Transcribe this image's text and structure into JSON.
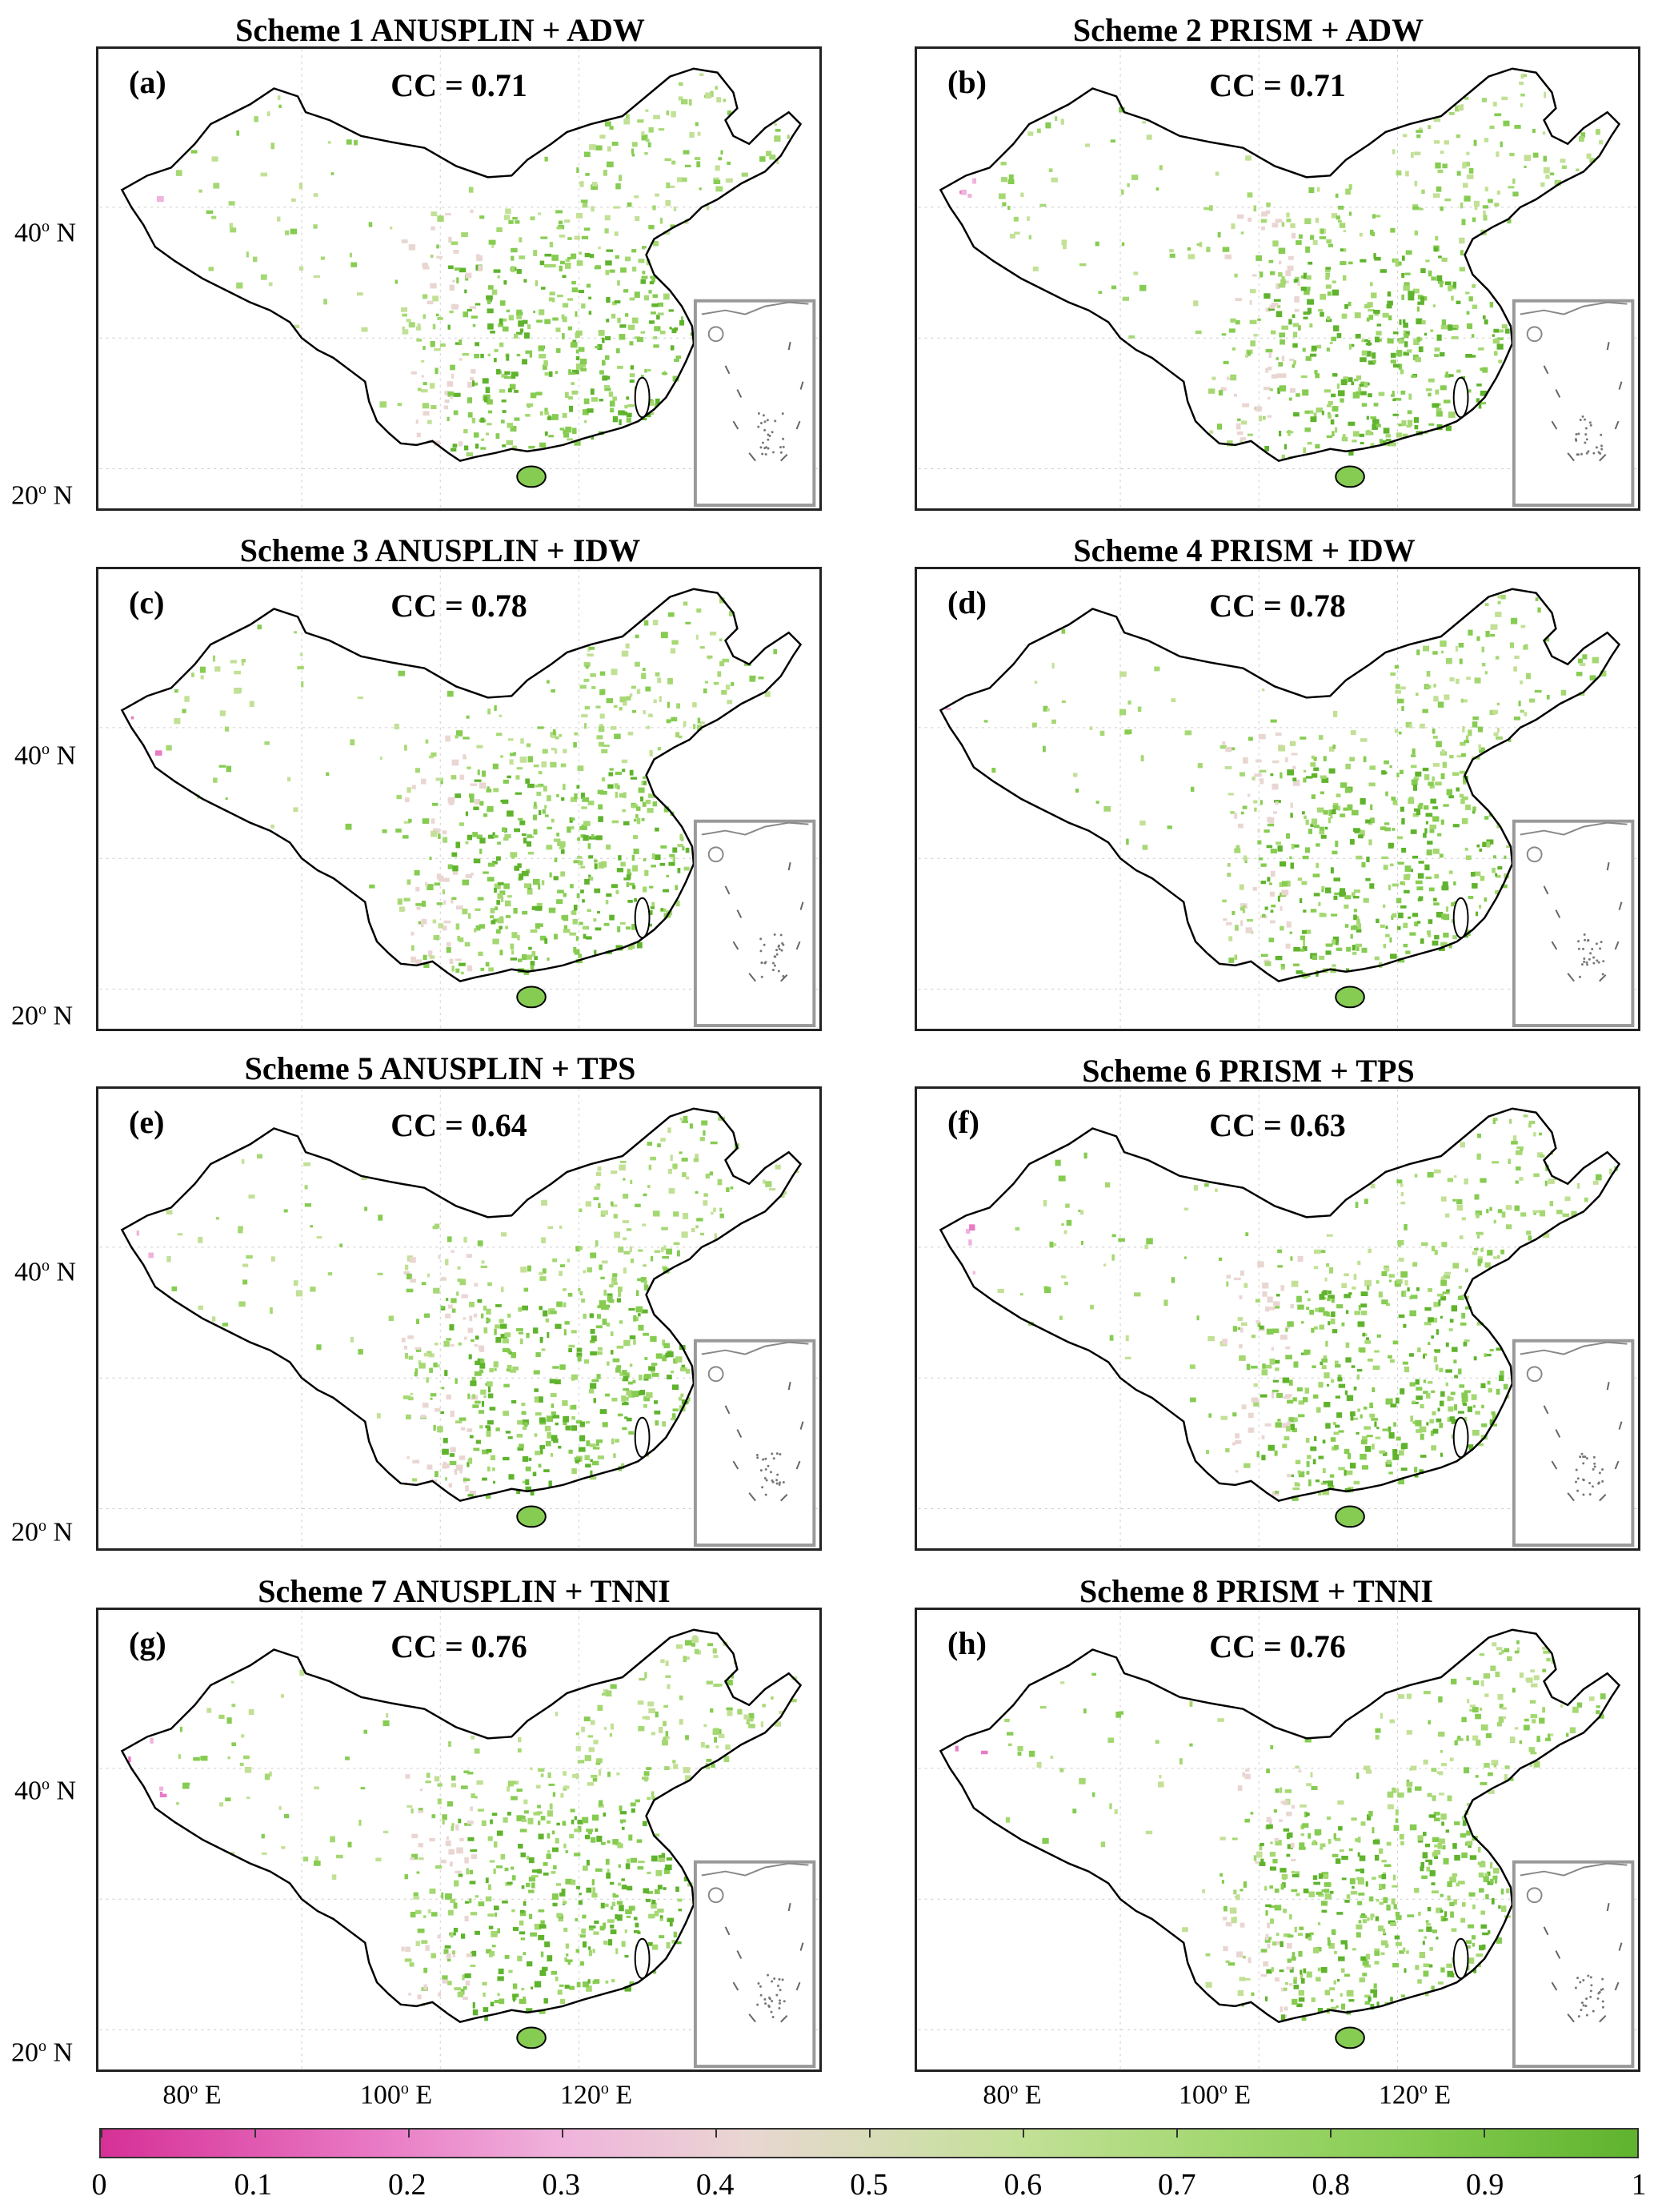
{
  "panels": [
    {
      "title": "Scheme 1   ANUSPLIN + ADW",
      "label": "(a)",
      "cc": "CC = 0.71"
    },
    {
      "title": "Scheme 2   PRISM + ADW",
      "label": "(b)",
      "cc": "CC = 0.71"
    },
    {
      "title": "Scheme 3   ANUSPLIN + IDW",
      "label": "(c)",
      "cc": "CC = 0.78"
    },
    {
      "title": "Scheme 4   PRISM + IDW",
      "label": "(d)",
      "cc": "CC = 0.78"
    },
    {
      "title": "Scheme 5   ANUSPLIN + TPS",
      "label": "(e)",
      "cc": "CC = 0.64"
    },
    {
      "title": "Scheme 6   PRISM + TPS",
      "label": "(f)",
      "cc": "CC = 0.63"
    },
    {
      "title": "Scheme 7  ANUSPLIN + TNNI",
      "label": "(g)",
      "cc": "CC = 0.76"
    },
    {
      "title": "Scheme 8   PRISM + TNNI",
      "label": "(h)",
      "cc": "CC = 0.76"
    }
  ],
  "lat_labels": {
    "north40": "40",
    "north20": "20",
    "suffix": " N"
  },
  "lon_labels": {
    "e80": "80",
    "e100": "100",
    "e120": "120",
    "suffix": " E"
  },
  "colorbar": {
    "ticks": [
      "0",
      "0.1",
      "0.2",
      "0.3",
      "0.4",
      "0.5",
      "0.6",
      "0.7",
      "0.8",
      "0.9",
      "1"
    ],
    "colors": [
      "#d63096",
      "#e97ac5",
      "#f0b3dc",
      "#e9d6d2",
      "#d8dcb8",
      "#c2e096",
      "#a5d873",
      "#86cc52",
      "#5fb32d"
    ]
  }
}
